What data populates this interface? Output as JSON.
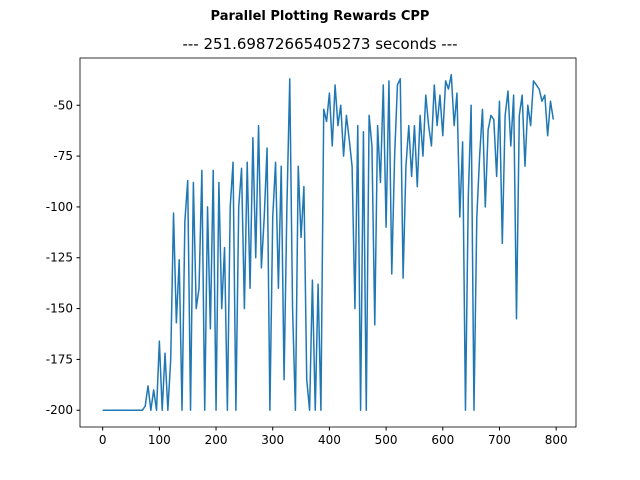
{
  "chart_data": {
    "type": "line",
    "title": "Parallel Plotting Rewards CPP",
    "subtitle": "--- 251.69872665405273 seconds ---",
    "x": [
      0,
      5,
      10,
      15,
      20,
      25,
      30,
      35,
      40,
      45,
      50,
      55,
      60,
      65,
      70,
      75,
      80,
      85,
      90,
      95,
      100,
      105,
      110,
      115,
      120,
      125,
      130,
      135,
      140,
      145,
      150,
      155,
      160,
      165,
      170,
      175,
      180,
      185,
      190,
      195,
      200,
      205,
      210,
      215,
      220,
      225,
      230,
      235,
      240,
      245,
      250,
      255,
      260,
      265,
      270,
      275,
      280,
      285,
      290,
      295,
      300,
      305,
      310,
      315,
      320,
      325,
      330,
      335,
      340,
      345,
      350,
      355,
      360,
      365,
      370,
      375,
      380,
      385,
      390,
      395,
      400,
      405,
      410,
      415,
      420,
      425,
      430,
      435,
      440,
      445,
      450,
      455,
      460,
      465,
      470,
      475,
      480,
      485,
      490,
      495,
      500,
      505,
      510,
      515,
      520,
      525,
      530,
      535,
      540,
      545,
      550,
      555,
      560,
      565,
      570,
      575,
      580,
      585,
      590,
      595,
      600,
      605,
      610,
      615,
      620,
      625,
      630,
      635,
      640,
      645,
      650,
      655,
      660,
      665,
      670,
      675,
      680,
      685,
      690,
      695,
      700,
      705,
      710,
      715,
      720,
      725,
      730,
      735,
      740,
      745,
      750,
      755,
      760,
      765,
      770,
      775,
      780,
      785,
      790,
      795
    ],
    "series": [
      {
        "color": "#1f77b4",
        "values": [
          -200,
          -200,
          -200,
          -200,
          -200,
          -200,
          -200,
          -200,
          -200,
          -200,
          -200,
          -200,
          -200,
          -200,
          -200,
          -198,
          -188,
          -200,
          -190,
          -200,
          -166,
          -200,
          -172,
          -200,
          -175,
          -103,
          -157,
          -126,
          -200,
          -107,
          -87,
          -200,
          -88,
          -150,
          -140,
          -82,
          -200,
          -100,
          -160,
          -82,
          -200,
          -88,
          -150,
          -120,
          -200,
          -100,
          -78,
          -200,
          -100,
          -81,
          -150,
          -78,
          -140,
          -66,
          -125,
          -60,
          -130,
          -105,
          -71,
          -200,
          -105,
          -78,
          -140,
          -80,
          -185,
          -100,
          -37,
          -150,
          -200,
          -80,
          -115,
          -90,
          -185,
          -200,
          -136,
          -200,
          -138,
          -200,
          -52,
          -58,
          -44,
          -70,
          -40,
          -60,
          -50,
          -75,
          -55,
          -67,
          -80,
          -150,
          -60,
          -200,
          -63,
          -200,
          -55,
          -70,
          -158,
          -60,
          -88,
          -40,
          -110,
          -38,
          -133,
          -75,
          -40,
          -37,
          -135,
          -80,
          -60,
          -85,
          -60,
          -90,
          -55,
          -75,
          -45,
          -60,
          -70,
          -40,
          -60,
          -45,
          -65,
          -38,
          -42,
          -35,
          -60,
          -44,
          -105,
          -68,
          -200,
          -95,
          -50,
          -200,
          -105,
          -75,
          -52,
          -100,
          -62,
          -55,
          -57,
          -85,
          -48,
          -118,
          -55,
          -43,
          -70,
          -45,
          -155,
          -55,
          -45,
          -80,
          -50,
          -60,
          -38,
          -40,
          -42,
          -48,
          -45,
          -65,
          -48,
          -57
        ]
      }
    ],
    "xlim": [
      -40,
      835
    ],
    "ylim": [
      -208.25,
      -26.75
    ],
    "xticks": [
      0,
      100,
      200,
      300,
      400,
      500,
      600,
      700,
      800
    ],
    "yticks": [
      -200,
      -175,
      -150,
      -125,
      -100,
      -75,
      -50
    ]
  }
}
